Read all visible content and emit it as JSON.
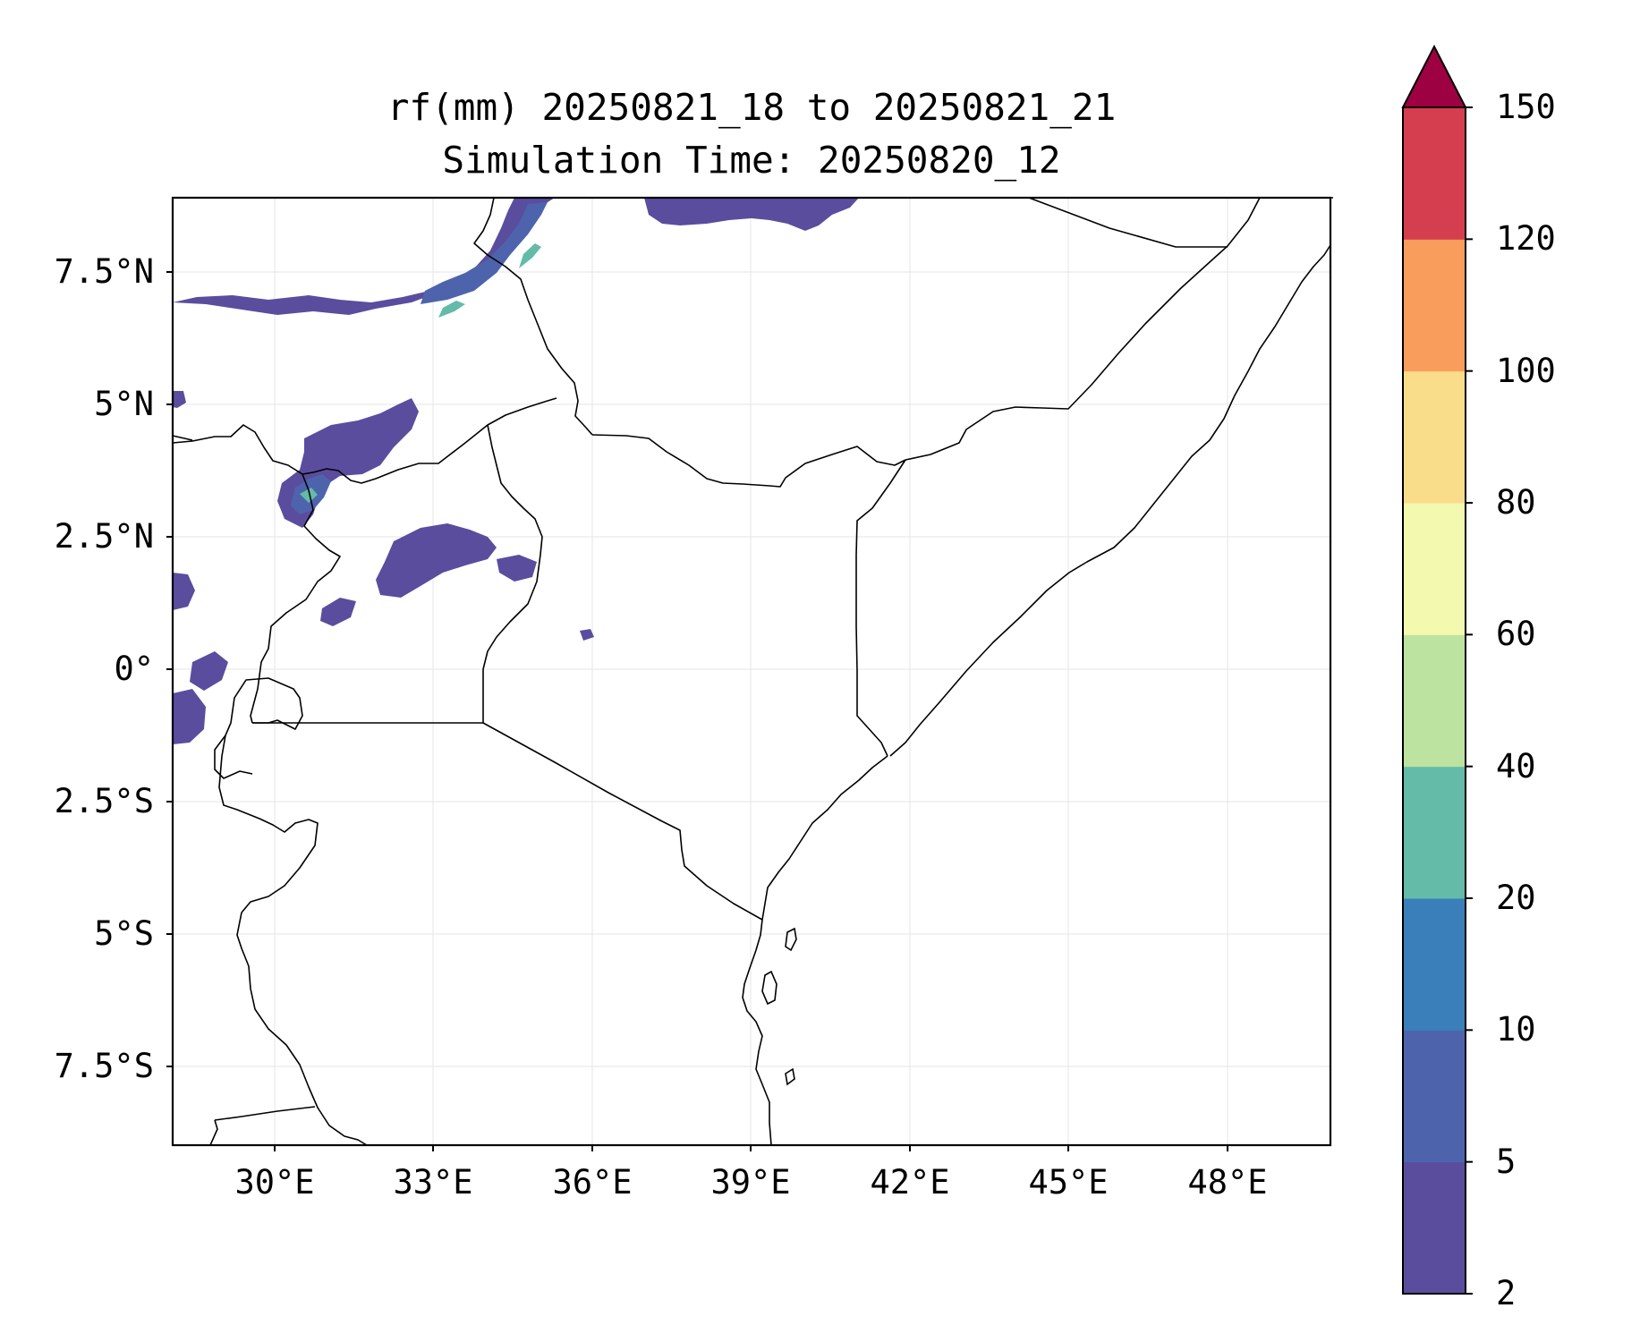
{
  "title": {
    "line1": "rf(mm) 20250821_18 to 20250821_21",
    "line2": "Simulation Time: 20250820_12"
  },
  "map": {
    "lon_range": [
      28.1,
      50.0
    ],
    "lat_range": [
      -8.9,
      9.0
    ],
    "x_ticks": [
      "30°E",
      "33°E",
      "36°E",
      "39°E",
      "42°E",
      "45°E",
      "48°E"
    ],
    "y_ticks": [
      "7.5°N",
      "5°N",
      "2.5°N",
      "0°",
      "2.5°S",
      "5°S",
      "7.5°S"
    ],
    "grid": true,
    "coastline_color": "#000000"
  },
  "colorbar": {
    "variable": "rf(mm)",
    "levels": [
      "2",
      "5",
      "10",
      "20",
      "40",
      "60",
      "80",
      "100",
      "120",
      "150"
    ],
    "colors": [
      "#5a4d9e",
      "#4d64ad",
      "#3a7fba",
      "#63bba8",
      "#bde3a0",
      "#f3f9ae",
      "#fadd8b",
      "#f89d5b",
      "#d53e4f",
      "#9e0142"
    ],
    "extend": "max",
    "orientation": "vertical",
    "placement": "right"
  }
}
